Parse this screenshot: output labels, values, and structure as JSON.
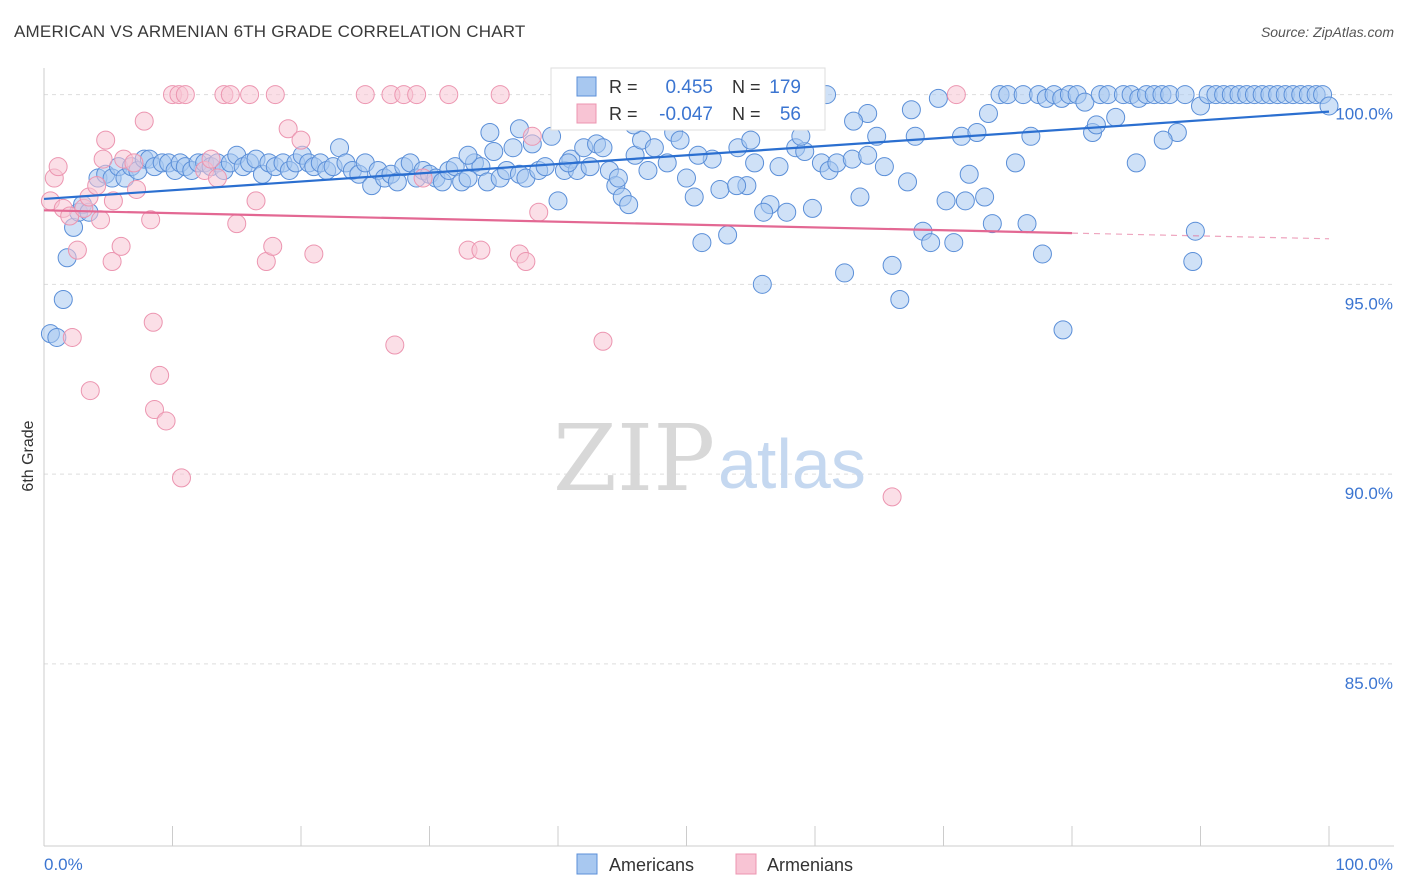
{
  "title": "AMERICAN VS ARMENIAN 6TH GRADE CORRELATION CHART",
  "source": "Source: ZipAtlas.com",
  "watermark": {
    "zip": "ZIP",
    "atlas": "atlas"
  },
  "colors": {
    "american_fill": "#a8c8f0",
    "american_stroke": "#5b8fd8",
    "american_line": "#2b6fd0",
    "armenian_fill": "#f8c4d4",
    "armenian_stroke": "#ec95b0",
    "armenian_line": "#e36893",
    "axis_text": "#3b75d1",
    "grid": "#dddddd"
  },
  "legend": {
    "rows": [
      {
        "r_label": "R =",
        "r_value": "0.455",
        "n_label": "N =",
        "n_value": "179"
      },
      {
        "r_label": "R =",
        "r_value": "-0.047",
        "n_label": "N =",
        "n_value": "56"
      }
    ]
  },
  "chart_data": {
    "type": "scatter",
    "title": "AMERICAN VS ARMENIAN 6TH GRADE CORRELATION CHART",
    "xlabel": "",
    "ylabel": "6th Grade",
    "xlim": [
      0,
      100
    ],
    "ylim": [
      80.2,
      100.7
    ],
    "x_tick_labels": [
      {
        "value": 0,
        "label": "0.0%"
      },
      {
        "value": 100,
        "label": "100.0%"
      }
    ],
    "y_ticks": [
      {
        "value": 100,
        "label": "100.0%"
      },
      {
        "value": 95,
        "label": "95.0%"
      },
      {
        "value": 90,
        "label": "90.0%"
      },
      {
        "value": 85,
        "label": "85.0%"
      }
    ],
    "x_minor_ticks": [
      10,
      20,
      30,
      40,
      50,
      60,
      70,
      80,
      90,
      100
    ],
    "series": [
      {
        "name": "Americans",
        "trend": {
          "x0": 0,
          "y0": 97.25,
          "x1": 100,
          "y1": 99.55,
          "solid_until": 100
        },
        "points": [
          [
            0.5,
            93.7
          ],
          [
            1.0,
            93.6
          ],
          [
            1.5,
            94.6
          ],
          [
            1.8,
            95.7
          ],
          [
            2.3,
            96.5
          ],
          [
            2.7,
            96.9
          ],
          [
            3.0,
            97.1
          ],
          [
            3.5,
            96.9
          ],
          [
            4.2,
            97.8
          ],
          [
            4.8,
            97.9
          ],
          [
            5.3,
            97.8
          ],
          [
            5.8,
            98.1
          ],
          [
            6.3,
            97.8
          ],
          [
            6.8,
            98.1
          ],
          [
            7.3,
            98.0
          ],
          [
            7.8,
            98.3
          ],
          [
            8.2,
            98.3
          ],
          [
            8.6,
            98.1
          ],
          [
            9.2,
            98.2
          ],
          [
            9.7,
            98.2
          ],
          [
            10.2,
            98.0
          ],
          [
            10.6,
            98.2
          ],
          [
            11.0,
            98.1
          ],
          [
            11.5,
            98.0
          ],
          [
            12.0,
            98.2
          ],
          [
            12.5,
            98.2
          ],
          [
            13.0,
            98.1
          ],
          [
            13.5,
            98.2
          ],
          [
            14.0,
            98.0
          ],
          [
            14.5,
            98.2
          ],
          [
            15.0,
            98.4
          ],
          [
            15.5,
            98.1
          ],
          [
            16.0,
            98.2
          ],
          [
            16.5,
            98.3
          ],
          [
            17.0,
            97.9
          ],
          [
            17.5,
            98.2
          ],
          [
            18.0,
            98.1
          ],
          [
            18.6,
            98.2
          ],
          [
            19.1,
            98.0
          ],
          [
            19.6,
            98.2
          ],
          [
            20.1,
            98.4
          ],
          [
            20.6,
            98.2
          ],
          [
            21.0,
            98.1
          ],
          [
            21.5,
            98.2
          ],
          [
            22.0,
            98.0
          ],
          [
            22.5,
            98.1
          ],
          [
            23.0,
            98.6
          ],
          [
            23.5,
            98.2
          ],
          [
            24.0,
            98.0
          ],
          [
            24.5,
            97.9
          ],
          [
            25.0,
            98.2
          ],
          [
            25.5,
            97.6
          ],
          [
            26.0,
            98.0
          ],
          [
            26.5,
            97.8
          ],
          [
            27.0,
            97.9
          ],
          [
            27.5,
            97.7
          ],
          [
            28.0,
            98.1
          ],
          [
            28.5,
            98.2
          ],
          [
            29.0,
            97.8
          ],
          [
            29.5,
            98.0
          ],
          [
            30.0,
            97.9
          ],
          [
            30.5,
            97.8
          ],
          [
            31.0,
            97.7
          ],
          [
            31.5,
            98.0
          ],
          [
            32.0,
            98.1
          ],
          [
            32.5,
            97.7
          ],
          [
            33.0,
            97.8
          ],
          [
            33.5,
            98.2
          ],
          [
            34.0,
            98.1
          ],
          [
            34.5,
            97.7
          ],
          [
            35.0,
            98.5
          ],
          [
            35.5,
            97.8
          ],
          [
            36.0,
            98.0
          ],
          [
            36.5,
            98.6
          ],
          [
            37.0,
            97.9
          ],
          [
            37.5,
            97.8
          ],
          [
            38.0,
            98.7
          ],
          [
            38.5,
            98.0
          ],
          [
            39.0,
            98.1
          ],
          [
            39.5,
            98.9
          ],
          [
            40.0,
            97.2
          ],
          [
            40.5,
            98.0
          ],
          [
            41.0,
            98.3
          ],
          [
            41.5,
            98.0
          ],
          [
            42.0,
            98.6
          ],
          [
            42.5,
            98.1
          ],
          [
            43.0,
            98.7
          ],
          [
            43.5,
            98.6
          ],
          [
            44.0,
            98.0
          ],
          [
            44.5,
            97.6
          ],
          [
            45.0,
            97.3
          ],
          [
            45.5,
            97.1
          ],
          [
            46.0,
            98.4
          ],
          [
            46.5,
            98.8
          ],
          [
            47.0,
            98.0
          ],
          [
            47.5,
            98.6
          ],
          [
            48.0,
            99.4
          ],
          [
            48.5,
            98.2
          ],
          [
            49.0,
            99.0
          ],
          [
            49.5,
            98.8
          ],
          [
            50.0,
            97.8
          ],
          [
            50.6,
            97.3
          ],
          [
            51.2,
            96.1
          ],
          [
            52.0,
            98.3
          ],
          [
            52.6,
            97.5
          ],
          [
            53.2,
            96.3
          ],
          [
            54.0,
            98.6
          ],
          [
            54.7,
            97.6
          ],
          [
            55.3,
            98.2
          ],
          [
            55.9,
            95.0
          ],
          [
            56.5,
            97.1
          ],
          [
            57.2,
            98.1
          ],
          [
            57.8,
            96.9
          ],
          [
            58.5,
            98.6
          ],
          [
            59.2,
            98.5
          ],
          [
            59.8,
            97.0
          ],
          [
            60.5,
            98.2
          ],
          [
            61.1,
            98.0
          ],
          [
            61.7,
            98.2
          ],
          [
            62.3,
            95.3
          ],
          [
            62.9,
            98.3
          ],
          [
            63.5,
            97.3
          ],
          [
            64.1,
            98.4
          ],
          [
            64.8,
            98.9
          ],
          [
            65.4,
            98.1
          ],
          [
            66.0,
            95.5
          ],
          [
            66.6,
            94.6
          ],
          [
            67.2,
            97.7
          ],
          [
            67.8,
            98.9
          ],
          [
            68.4,
            96.4
          ],
          [
            69.0,
            96.1
          ],
          [
            69.6,
            99.9
          ],
          [
            70.2,
            97.2
          ],
          [
            70.8,
            96.1
          ],
          [
            71.4,
            98.9
          ],
          [
            72.0,
            97.9
          ],
          [
            72.6,
            99.0
          ],
          [
            73.2,
            97.3
          ],
          [
            73.8,
            96.6
          ],
          [
            74.4,
            100.0
          ],
          [
            75.0,
            100.0
          ],
          [
            75.6,
            98.2
          ],
          [
            76.2,
            100.0
          ],
          [
            76.8,
            98.9
          ],
          [
            77.4,
            100.0
          ],
          [
            78.0,
            99.9
          ],
          [
            78.6,
            100.0
          ],
          [
            79.2,
            99.9
          ],
          [
            79.8,
            100.0
          ],
          [
            80.4,
            100.0
          ],
          [
            81.0,
            99.8
          ],
          [
            81.6,
            99.0
          ],
          [
            82.2,
            100.0
          ],
          [
            82.8,
            100.0
          ],
          [
            83.4,
            99.4
          ],
          [
            84.0,
            100.0
          ],
          [
            84.6,
            100.0
          ],
          [
            85.2,
            99.9
          ],
          [
            85.8,
            100.0
          ],
          [
            86.4,
            100.0
          ],
          [
            87.0,
            100.0
          ],
          [
            87.6,
            100.0
          ],
          [
            88.2,
            99.0
          ],
          [
            88.8,
            100.0
          ],
          [
            89.4,
            95.6
          ],
          [
            90.0,
            99.7
          ],
          [
            90.6,
            100.0
          ],
          [
            91.2,
            100.0
          ],
          [
            91.8,
            100.0
          ],
          [
            92.4,
            100.0
          ],
          [
            93.0,
            100.0
          ],
          [
            93.6,
            100.0
          ],
          [
            94.2,
            100.0
          ],
          [
            94.8,
            100.0
          ],
          [
            95.4,
            100.0
          ],
          [
            96.0,
            100.0
          ],
          [
            96.6,
            100.0
          ],
          [
            97.2,
            100.0
          ],
          [
            97.8,
            100.0
          ],
          [
            98.4,
            100.0
          ],
          [
            99.0,
            100.0
          ],
          [
            99.5,
            100.0
          ],
          [
            100.0,
            99.7
          ],
          [
            34.7,
            99.0
          ],
          [
            56.0,
            96.9
          ],
          [
            64.1,
            99.5
          ],
          [
            71.7,
            97.2
          ],
          [
            76.5,
            96.6
          ],
          [
            79.3,
            93.8
          ],
          [
            89.6,
            96.4
          ],
          [
            85.0,
            98.2
          ],
          [
            81.9,
            99.2
          ],
          [
            87.1,
            98.8
          ],
          [
            77.7,
            95.8
          ],
          [
            60.9,
            100.0
          ],
          [
            58.9,
            98.9
          ],
          [
            48.7,
            99.8
          ],
          [
            40.8,
            98.2
          ],
          [
            42.8,
            99.4
          ],
          [
            53.9,
            97.6
          ],
          [
            33.0,
            98.4
          ],
          [
            37.0,
            99.1
          ],
          [
            45.9,
            99.2
          ],
          [
            44.7,
            97.8
          ],
          [
            50.9,
            98.4
          ],
          [
            63.0,
            99.3
          ],
          [
            55.0,
            98.8
          ],
          [
            67.5,
            99.6
          ],
          [
            73.5,
            99.5
          ]
        ]
      },
      {
        "name": "Armenians",
        "trend": {
          "x0": 0,
          "y0": 96.95,
          "x1": 100,
          "y1": 96.2,
          "solid_until": 80
        },
        "points": [
          [
            0.5,
            97.2
          ],
          [
            0.8,
            97.8
          ],
          [
            1.1,
            98.1
          ],
          [
            1.5,
            97.0
          ],
          [
            2.0,
            96.8
          ],
          [
            2.2,
            93.6
          ],
          [
            2.6,
            95.9
          ],
          [
            3.1,
            97.0
          ],
          [
            3.5,
            97.3
          ],
          [
            3.6,
            92.2
          ],
          [
            4.1,
            97.6
          ],
          [
            4.4,
            96.7
          ],
          [
            4.6,
            98.3
          ],
          [
            4.8,
            98.8
          ],
          [
            5.3,
            95.6
          ],
          [
            5.4,
            97.2
          ],
          [
            6.0,
            96.0
          ],
          [
            6.2,
            98.3
          ],
          [
            7.0,
            98.2
          ],
          [
            7.2,
            97.5
          ],
          [
            7.8,
            99.3
          ],
          [
            8.3,
            96.7
          ],
          [
            8.5,
            94.0
          ],
          [
            8.6,
            91.7
          ],
          [
            9.0,
            92.6
          ],
          [
            9.5,
            91.4
          ],
          [
            10.0,
            100.0
          ],
          [
            10.5,
            100.0
          ],
          [
            10.7,
            89.9
          ],
          [
            11.0,
            100.0
          ],
          [
            12.5,
            98.0
          ],
          [
            13.0,
            98.3
          ],
          [
            13.5,
            97.8
          ],
          [
            14.0,
            100.0
          ],
          [
            14.5,
            100.0
          ],
          [
            15.0,
            96.6
          ],
          [
            16.0,
            100.0
          ],
          [
            16.5,
            97.2
          ],
          [
            17.3,
            95.6
          ],
          [
            17.8,
            96.0
          ],
          [
            18.0,
            100.0
          ],
          [
            19.0,
            99.1
          ],
          [
            20.0,
            98.8
          ],
          [
            21.0,
            95.8
          ],
          [
            25.0,
            100.0
          ],
          [
            27.0,
            100.0
          ],
          [
            27.3,
            93.4
          ],
          [
            28.0,
            100.0
          ],
          [
            29.0,
            100.0
          ],
          [
            29.5,
            97.8
          ],
          [
            31.5,
            100.0
          ],
          [
            33.0,
            95.9
          ],
          [
            34.0,
            95.9
          ],
          [
            35.5,
            100.0
          ],
          [
            37.0,
            95.8
          ],
          [
            37.5,
            95.6
          ],
          [
            38.0,
            98.9
          ],
          [
            38.5,
            96.9
          ],
          [
            43.5,
            93.5
          ],
          [
            66.0,
            89.4
          ],
          [
            71.0,
            100.0
          ]
        ]
      }
    ]
  },
  "bottom_legend": [
    {
      "label": "Americans"
    },
    {
      "label": "Armenians"
    }
  ]
}
